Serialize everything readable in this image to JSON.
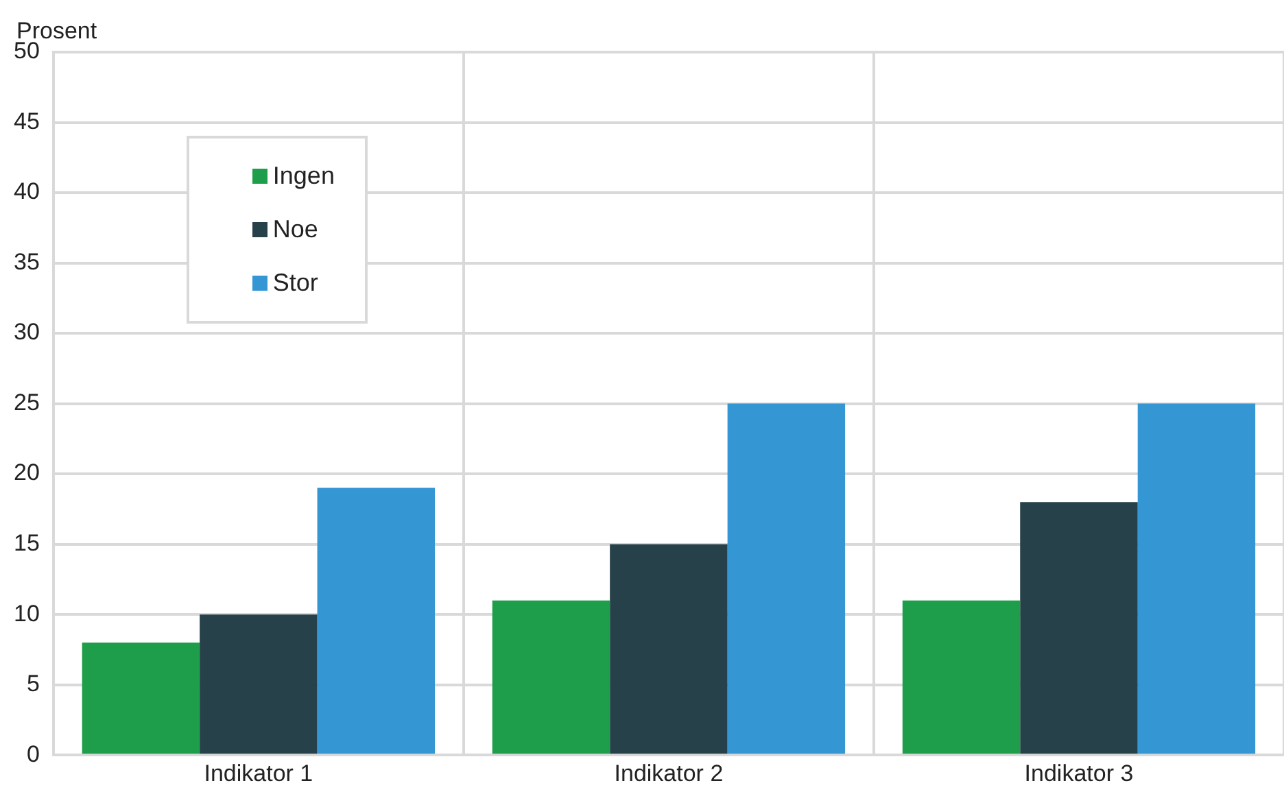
{
  "chart_data": {
    "type": "bar",
    "ylabel": "Prosent",
    "categories": [
      "Indikator 1",
      "Indikator 2",
      "Indikator 3"
    ],
    "series": [
      {
        "name": "Ingen",
        "color": "#1e9e4a",
        "values": [
          8,
          11,
          11
        ]
      },
      {
        "name": "Noe",
        "color": "#27414a",
        "values": [
          10,
          15,
          18
        ]
      },
      {
        "name": "Stor",
        "color": "#3596d4",
        "values": [
          19,
          25,
          25
        ]
      }
    ],
    "ylim": [
      0,
      50
    ],
    "yticks": [
      0,
      5,
      10,
      15,
      20,
      25,
      30,
      35,
      40,
      45,
      50
    ],
    "grid": true,
    "legend": "top left"
  }
}
